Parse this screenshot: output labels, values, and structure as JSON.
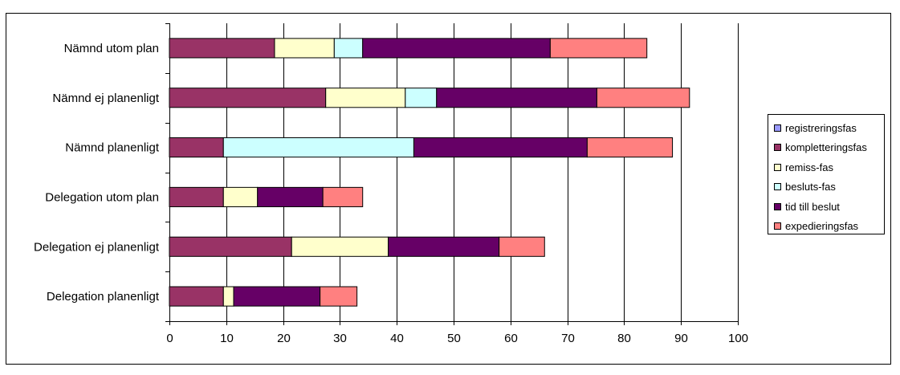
{
  "chart_data": {
    "type": "bar",
    "orientation": "horizontal",
    "stacked": true,
    "categories": [
      "Nämnd utom plan",
      "Nämnd ej planenligt",
      "Nämnd planenligt",
      "Delegation utom plan",
      "Delegation ej planenligt",
      "Delegation planenligt"
    ],
    "series": [
      {
        "name": "registreringsfas",
        "color": "#9999ff",
        "values": [
          0,
          0,
          0,
          0,
          0,
          0
        ]
      },
      {
        "name": "kompletteringsfas",
        "color": "#993366",
        "values": [
          18.5,
          27.5,
          9.5,
          9.5,
          21.5,
          9.5
        ]
      },
      {
        "name": "remiss-fas",
        "color": "#ffffcc",
        "values": [
          10.5,
          14,
          0,
          6,
          17,
          1.8
        ]
      },
      {
        "name": "besluts-fas",
        "color": "#ccffff",
        "values": [
          5,
          5.5,
          33.5,
          0,
          0,
          0
        ]
      },
      {
        "name": "tid till beslut",
        "color": "#660066",
        "values": [
          33,
          28.2,
          30.5,
          11.5,
          19.5,
          15.2
        ]
      },
      {
        "name": "expedieringsfas",
        "color": "#ff8080",
        "values": [
          17,
          16.3,
          15,
          7,
          8,
          6.5
        ]
      }
    ],
    "xlim": [
      0,
      100
    ],
    "xticks": [
      "0",
      "10",
      "20",
      "30",
      "40",
      "50",
      "60",
      "70",
      "80",
      "90",
      "100"
    ],
    "grid": true,
    "legend_position": "right",
    "title": "",
    "xlabel": "",
    "ylabel": ""
  }
}
